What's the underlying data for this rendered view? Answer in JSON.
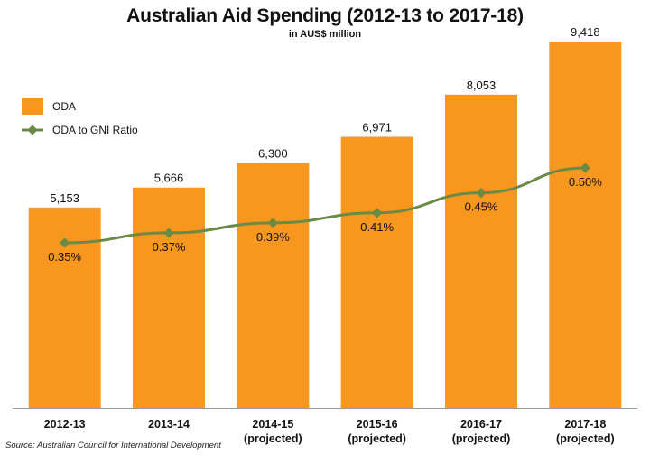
{
  "chart_data": {
    "type": "bar",
    "title": "Australian Aid Spending (2012-13 to 2017-18)",
    "subtitle": "in AUS$ million",
    "categories": [
      [
        "2012-13"
      ],
      [
        "2013-14"
      ],
      [
        "2014-15",
        "(projected)"
      ],
      [
        "2015-16",
        "(projected)"
      ],
      [
        "2016-17",
        "(projected)"
      ],
      [
        "2017-18",
        "(projected)"
      ]
    ],
    "series": [
      {
        "name": "ODA",
        "type": "bar",
        "color": "#F7971E",
        "values": [
          5153,
          5666,
          6300,
          6971,
          8053,
          9418
        ],
        "labels": [
          "5,153",
          "5,666",
          "6,300",
          "6,971",
          "8,053",
          "9,418"
        ]
      },
      {
        "name": "ODA to GNI Ratio",
        "type": "line",
        "color": "#6B8A45",
        "values": [
          0.35,
          0.37,
          0.39,
          0.41,
          0.45,
          0.5
        ],
        "labels": [
          "0.35%",
          "0.37%",
          "0.39%",
          "0.41%",
          "0.45%",
          "0.50%"
        ]
      }
    ],
    "ylim": [
      0,
      10000
    ],
    "legend_position": "top-left",
    "grid": false
  },
  "source": "Source: Australian Council for International Development"
}
